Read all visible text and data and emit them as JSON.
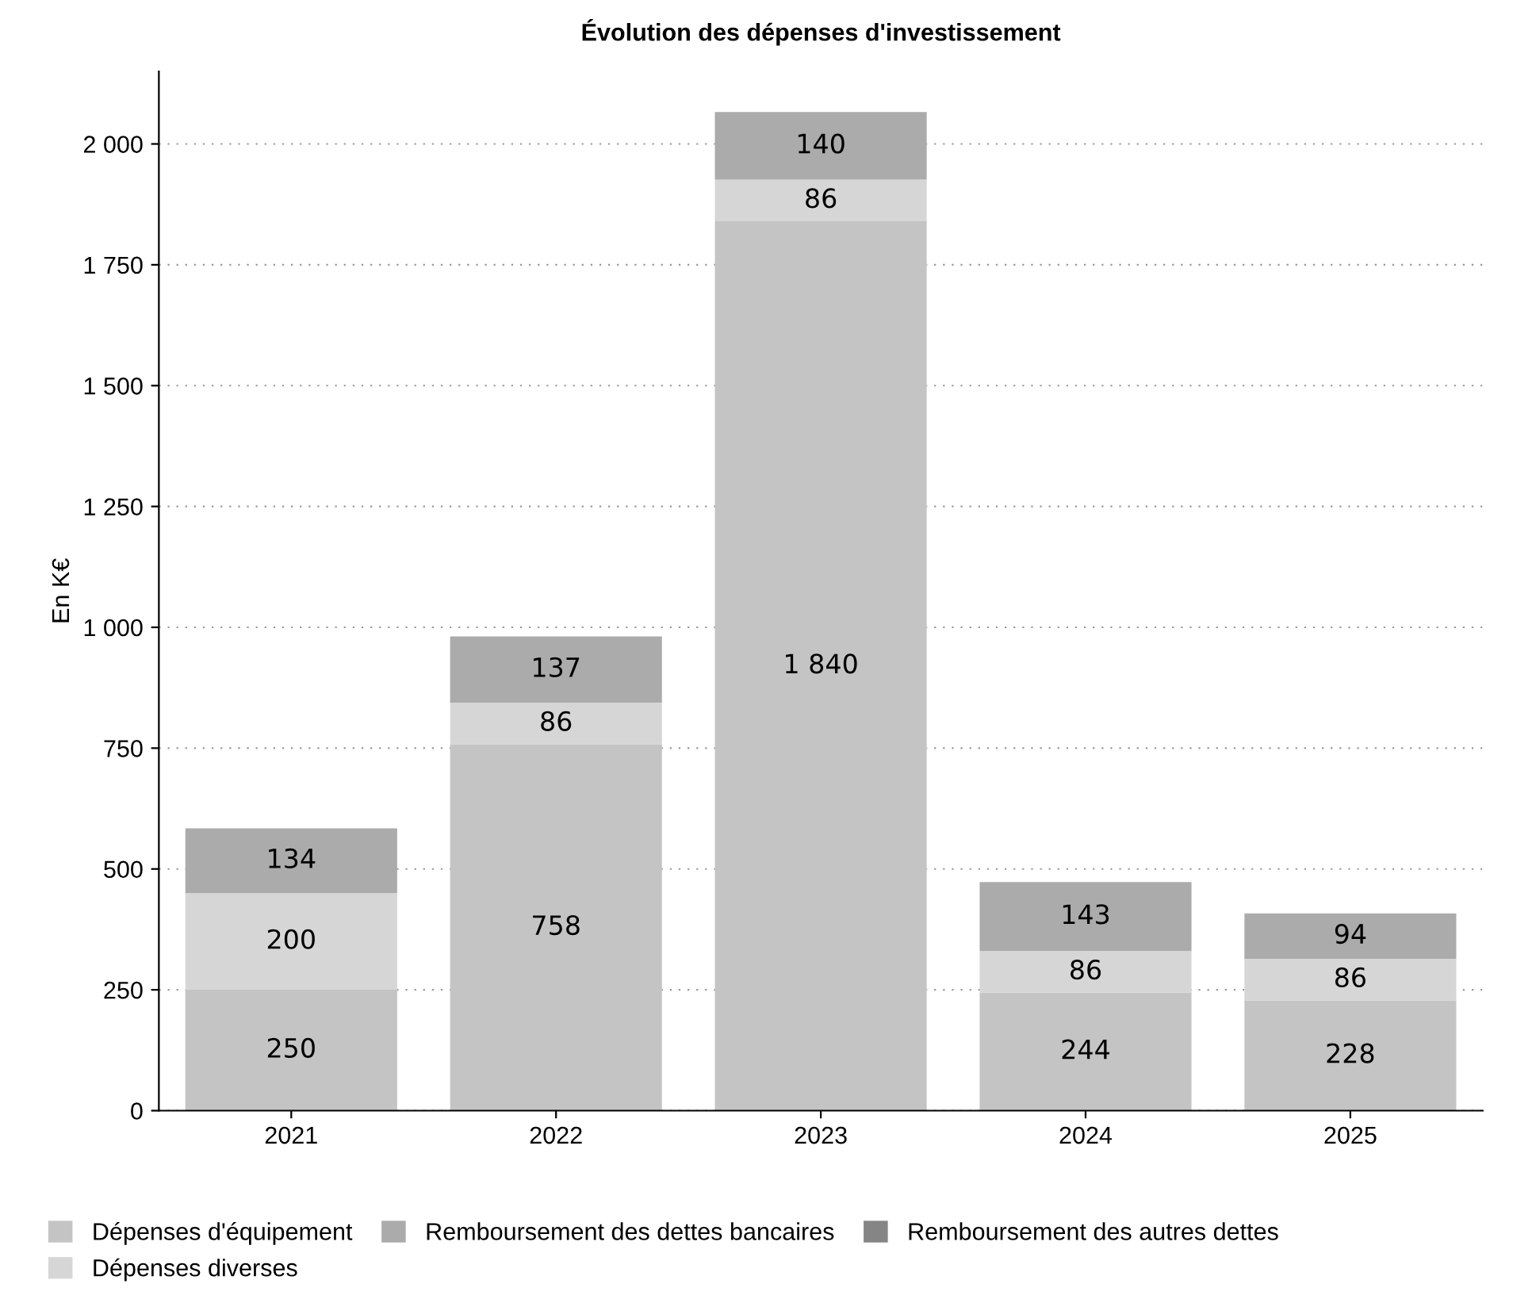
{
  "chart_data": {
    "type": "bar",
    "stacked": true,
    "title": "Évolution des dépenses d'investissement",
    "ylabel": "En K€",
    "categories": [
      "2021",
      "2022",
      "2023",
      "2024",
      "2025"
    ],
    "series": [
      {
        "name": "Dépenses d'équipement",
        "color": "#c4c4c4",
        "values": [
          250,
          758,
          1840,
          244,
          228
        ],
        "value_labels": [
          "250",
          "758",
          "1 840",
          "244",
          "228"
        ]
      },
      {
        "name": "Dépenses diverses",
        "color": "#d6d6d6",
        "values": [
          200,
          86,
          86,
          86,
          86
        ],
        "value_labels": [
          "200",
          "86",
          "86",
          "86",
          "86"
        ]
      },
      {
        "name": "Remboursement des dettes bancaires",
        "color": "#ababab",
        "values": [
          134,
          137,
          140,
          143,
          94
        ],
        "value_labels": [
          "134",
          "137",
          "140",
          "143",
          "94"
        ]
      },
      {
        "name": "Remboursement des autres dettes",
        "color": "#858585",
        "values": [
          null,
          null,
          null,
          null,
          null
        ]
      }
    ],
    "ylim": [
      0,
      2150
    ],
    "yticks": [
      0,
      250,
      500,
      750,
      {
        "value": 1000,
        "label": "1 000"
      },
      {
        "value": 1250,
        "label": "1 250"
      },
      {
        "value": 1500,
        "label": "1 500"
      },
      {
        "value": 1750,
        "label": "1 750"
      },
      {
        "value": 2000,
        "label": "2 000"
      }
    ],
    "grid": "y",
    "legend": "bottom"
  }
}
